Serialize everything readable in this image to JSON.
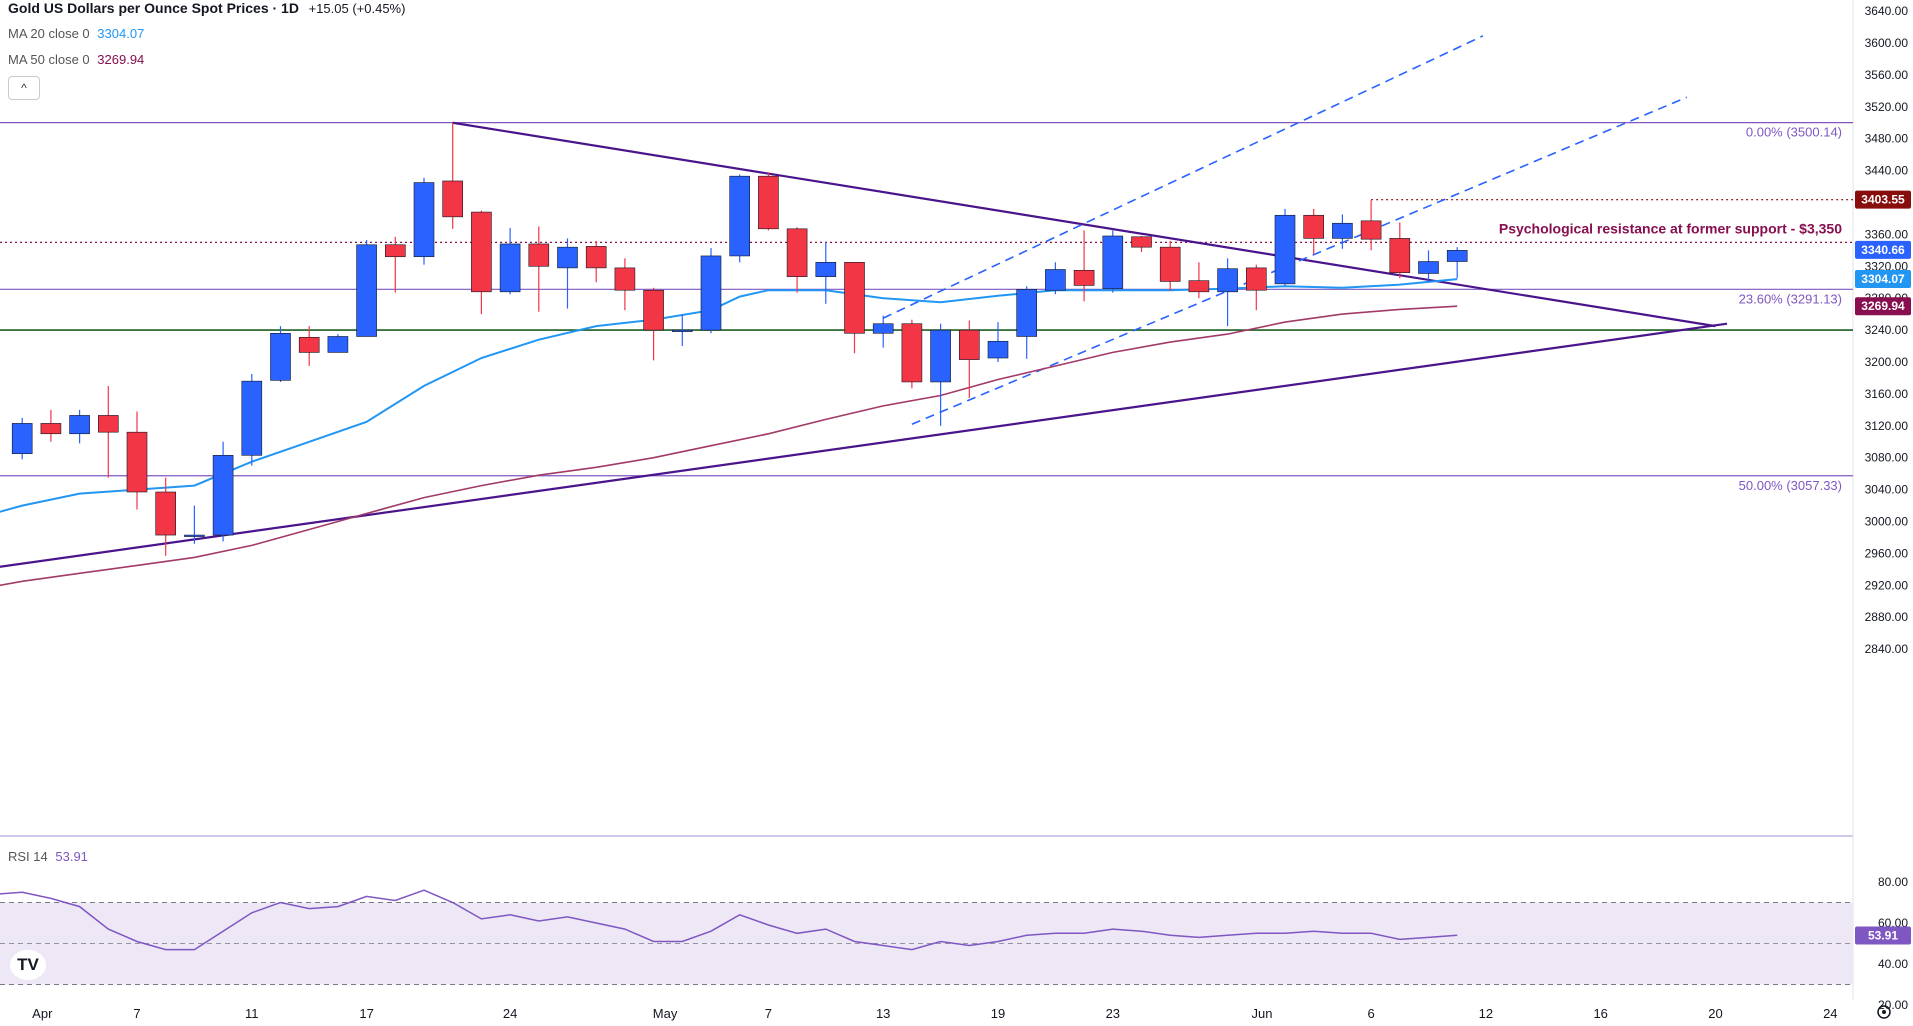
{
  "header": {
    "title": "Gold US Dollars per Ounce Spot Prices · 1D",
    "change": "+15.05 (+0.45%)",
    "ma20_label": "MA 20 close 0",
    "ma20_value": "3304.07",
    "ma50_label": "MA 50 close 0",
    "ma50_value": "3269.94",
    "collapse_glyph": "^"
  },
  "rsi_header": {
    "label": "RSI 14",
    "value": "53.91"
  },
  "annotations": {
    "resistance_label": "Psychological resistance at former support - $3,350",
    "fib_0": "0.00% (3500.14)",
    "fib_236": "23.60% (3291.13)",
    "fib_50": "50.00% (3057.33)"
  },
  "price_tags": [
    {
      "text": "3403.55",
      "value": 3403.55,
      "color": "#880e0e"
    },
    {
      "text": "3340.66",
      "value": 3340.66,
      "color": "#2962ff"
    },
    {
      "text": "3304.07",
      "value": 3304.07,
      "color": "#2196f3"
    },
    {
      "text": "3269.94",
      "value": 3269.94,
      "color": "#880e4f"
    }
  ],
  "rsi_tag": {
    "text": "53.91",
    "value": 53.91,
    "color": "#7e57c2"
  },
  "logo": "TV",
  "colors": {
    "up": "#2962ff",
    "down": "#f23645",
    "ma20": "#2196f3",
    "ma50": "#a23a68",
    "trend": "#4a148c",
    "fib": "#7e57c2",
    "channel": "#2962ff",
    "support": "#1b5e20",
    "rsi_line": "#7e57c2",
    "rsi_band": "#ede7f6"
  },
  "chart_data": {
    "type": "candlestick",
    "title": "Gold US Dollars per Ounce Spot Prices · 1D",
    "y_axis": {
      "range": [
        2800,
        3640
      ],
      "ticks": [
        "2840.00",
        "2880.00",
        "2920.00",
        "2960.00",
        "3000.00",
        "3040.00",
        "3080.00",
        "3120.00",
        "3160.00",
        "3200.00",
        "3240.00",
        "3280.00",
        "3320.00",
        "3360.00",
        "3400.00",
        "3440.00",
        "3480.00",
        "3520.00",
        "3560.00",
        "3600.00",
        "3640.00"
      ]
    },
    "x_axis": {
      "ticks": [
        {
          "label": "Apr",
          "d": -3.3
        },
        {
          "label": "7",
          "d": 0
        },
        {
          "label": "11",
          "d": 4
        },
        {
          "label": "17",
          "d": 8
        },
        {
          "label": "24",
          "d": 13
        },
        {
          "label": "May",
          "d": 18.4
        },
        {
          "label": "7",
          "d": 22
        },
        {
          "label": "13",
          "d": 26
        },
        {
          "label": "19",
          "d": 30
        },
        {
          "label": "23",
          "d": 34
        },
        {
          "label": "Jun",
          "d": 39.2
        },
        {
          "label": "6",
          "d": 43
        },
        {
          "label": "12",
          "d": 47
        },
        {
          "label": "16",
          "d": 51
        },
        {
          "label": "20",
          "d": 55
        },
        {
          "label": "24",
          "d": 59
        }
      ]
    },
    "candles": [
      {
        "d": -4,
        "o": 3085,
        "h": 3130,
        "l": 3078,
        "c": 3123
      },
      {
        "d": -3,
        "o": 3123,
        "h": 3140,
        "l": 3100,
        "c": 3110
      },
      {
        "d": -2,
        "o": 3110,
        "h": 3140,
        "l": 3098,
        "c": 3133
      },
      {
        "d": -1,
        "o": 3133,
        "h": 3170,
        "l": 3055,
        "c": 3112
      },
      {
        "d": 0,
        "o": 3112,
        "h": 3138,
        "l": 3015,
        "c": 3037
      },
      {
        "d": 1,
        "o": 3037,
        "h": 3055,
        "l": 2957,
        "c": 2983
      },
      {
        "d": 2,
        "o": 2982,
        "h": 3020,
        "l": 2972,
        "c": 2983
      },
      {
        "d": 3,
        "o": 2983,
        "h": 3100,
        "l": 2975,
        "c": 3083
      },
      {
        "d": 4,
        "o": 3083,
        "h": 3185,
        "l": 3070,
        "c": 3176
      },
      {
        "d": 5,
        "o": 3177,
        "h": 3245,
        "l": 3175,
        "c": 3236
      },
      {
        "d": 6,
        "o": 3231,
        "h": 3245,
        "l": 3195,
        "c": 3212
      },
      {
        "d": 7,
        "o": 3212,
        "h": 3235,
        "l": 3212,
        "c": 3232
      },
      {
        "d": 8,
        "o": 3232,
        "h": 3353,
        "l": 3232,
        "c": 3347
      },
      {
        "d": 9,
        "o": 3347,
        "h": 3357,
        "l": 3287,
        "c": 3332
      },
      {
        "d": 10,
        "o": 3332,
        "h": 3431,
        "l": 3322,
        "c": 3425
      },
      {
        "d": 11,
        "o": 3427,
        "h": 3500,
        "l": 3367,
        "c": 3382
      },
      {
        "d": 12,
        "o": 3388,
        "h": 3390,
        "l": 3260,
        "c": 3288
      },
      {
        "d": 13,
        "o": 3288,
        "h": 3368,
        "l": 3285,
        "c": 3348
      },
      {
        "d": 14,
        "o": 3348,
        "h": 3370,
        "l": 3263,
        "c": 3320
      },
      {
        "d": 15,
        "o": 3318,
        "h": 3355,
        "l": 3267,
        "c": 3344
      },
      {
        "d": 16,
        "o": 3345,
        "h": 3352,
        "l": 3300,
        "c": 3318
      },
      {
        "d": 17,
        "o": 3318,
        "h": 3330,
        "l": 3265,
        "c": 3290
      },
      {
        "d": 18,
        "o": 3290,
        "h": 3293,
        "l": 3202,
        "c": 3240
      },
      {
        "d": 19,
        "o": 3240,
        "h": 3260,
        "l": 3220,
        "c": 3240
      },
      {
        "d": 20,
        "o": 3240,
        "h": 3343,
        "l": 3236,
        "c": 3333
      },
      {
        "d": 21,
        "o": 3333,
        "h": 3435,
        "l": 3325,
        "c": 3433
      },
      {
        "d": 22,
        "o": 3433,
        "h": 3438,
        "l": 3365,
        "c": 3367
      },
      {
        "d": 23,
        "o": 3367,
        "h": 3369,
        "l": 3287,
        "c": 3307
      },
      {
        "d": 24,
        "o": 3307,
        "h": 3350,
        "l": 3273,
        "c": 3325
      },
      {
        "d": 25,
        "o": 3325,
        "h": 3325,
        "l": 3211,
        "c": 3236
      },
      {
        "d": 26,
        "o": 3236,
        "h": 3258,
        "l": 3218,
        "c": 3248
      },
      {
        "d": 27,
        "o": 3248,
        "h": 3253,
        "l": 3167,
        "c": 3175
      },
      {
        "d": 28,
        "o": 3175,
        "h": 3248,
        "l": 3120,
        "c": 3240
      },
      {
        "d": 29,
        "o": 3240,
        "h": 3252,
        "l": 3155,
        "c": 3203
      },
      {
        "d": 30,
        "o": 3205,
        "h": 3250,
        "l": 3200,
        "c": 3226
      },
      {
        "d": 31,
        "o": 3232,
        "h": 3295,
        "l": 3204,
        "c": 3291
      },
      {
        "d": 32,
        "o": 3290,
        "h": 3325,
        "l": 3285,
        "c": 3316
      },
      {
        "d": 33,
        "o": 3315,
        "h": 3365,
        "l": 3276,
        "c": 3296
      },
      {
        "d": 34,
        "o": 3292,
        "h": 3365,
        "l": 3287,
        "c": 3358
      },
      {
        "d": 35,
        "o": 3357,
        "h": 3358,
        "l": 3338,
        "c": 3344
      },
      {
        "d": 36,
        "o": 3344,
        "h": 3352,
        "l": 3289,
        "c": 3301
      },
      {
        "d": 37,
        "o": 3302,
        "h": 3325,
        "l": 3280,
        "c": 3288
      },
      {
        "d": 38,
        "o": 3288,
        "h": 3330,
        "l": 3245,
        "c": 3317
      },
      {
        "d": 39,
        "o": 3318,
        "h": 3322,
        "l": 3265,
        "c": 3290
      },
      {
        "d": 40,
        "o": 3298,
        "h": 3392,
        "l": 3296,
        "c": 3384
      },
      {
        "d": 41,
        "o": 3384,
        "h": 3392,
        "l": 3335,
        "c": 3355
      },
      {
        "d": 42,
        "o": 3355,
        "h": 3385,
        "l": 3342,
        "c": 3374
      },
      {
        "d": 43,
        "o": 3377,
        "h": 3403,
        "l": 3340,
        "c": 3354
      },
      {
        "d": 44,
        "o": 3355,
        "h": 3375,
        "l": 3305,
        "c": 3312
      },
      {
        "d": 45,
        "o": 3311,
        "h": 3340,
        "l": 3300,
        "c": 3326
      },
      {
        "d": 46,
        "o": 3326,
        "h": 3344,
        "l": 3305,
        "c": 3340
      }
    ],
    "ma20": [
      [
        -6,
        3000
      ],
      [
        -4,
        3020
      ],
      [
        -2,
        3035
      ],
      [
        0,
        3040
      ],
      [
        2,
        3045
      ],
      [
        4,
        3075
      ],
      [
        6,
        3100
      ],
      [
        8,
        3125
      ],
      [
        10,
        3170
      ],
      [
        12,
        3205
      ],
      [
        14,
        3228
      ],
      [
        16,
        3245
      ],
      [
        18,
        3253
      ],
      [
        20,
        3265
      ],
      [
        21,
        3282
      ],
      [
        22,
        3290
      ],
      [
        24,
        3290
      ],
      [
        26,
        3280
      ],
      [
        28,
        3275
      ],
      [
        30,
        3283
      ],
      [
        32,
        3290
      ],
      [
        34,
        3290
      ],
      [
        36,
        3290
      ],
      [
        38,
        3292
      ],
      [
        40,
        3295
      ],
      [
        42,
        3293
      ],
      [
        44,
        3297
      ],
      [
        46,
        3304
      ]
    ],
    "ma50": [
      [
        -6,
        2912
      ],
      [
        -4,
        2925
      ],
      [
        -2,
        2935
      ],
      [
        0,
        2945
      ],
      [
        2,
        2955
      ],
      [
        4,
        2970
      ],
      [
        6,
        2990
      ],
      [
        8,
        3010
      ],
      [
        10,
        3030
      ],
      [
        12,
        3045
      ],
      [
        14,
        3058
      ],
      [
        16,
        3068
      ],
      [
        18,
        3080
      ],
      [
        20,
        3095
      ],
      [
        22,
        3110
      ],
      [
        24,
        3128
      ],
      [
        26,
        3145
      ],
      [
        28,
        3158
      ],
      [
        30,
        3178
      ],
      [
        32,
        3195
      ],
      [
        34,
        3212
      ],
      [
        36,
        3225
      ],
      [
        38,
        3235
      ],
      [
        40,
        3250
      ],
      [
        42,
        3260
      ],
      [
        44,
        3266
      ],
      [
        46,
        3270
      ]
    ],
    "horizontal_levels": [
      {
        "value": 3500.14,
        "label": "0.00% (3500.14)",
        "style": "fib"
      },
      {
        "value": 3291.13,
        "label": "23.60% (3291.13)",
        "style": "fib"
      },
      {
        "value": 3057.33,
        "label": "50.00% (3057.33)",
        "style": "fib"
      },
      {
        "value": 3240,
        "label": "",
        "style": "support"
      },
      {
        "value": 3350,
        "label": "Psychological resistance at former support - $3,350",
        "style": "dotted"
      },
      {
        "value": 3403.55,
        "label": "",
        "style": "dotted-short"
      }
    ],
    "trendlines": [
      {
        "from": [
          11,
          3500
        ],
        "to": [
          55,
          3245
        ],
        "style": "solid"
      },
      {
        "from": [
          -6,
          2937
        ],
        "to": [
          55.4,
          3248
        ],
        "style": "solid"
      },
      {
        "from": [
          27,
          3122
        ],
        "to": [
          54,
          3532
        ],
        "style": "dashed"
      },
      {
        "from": [
          26,
          3255
        ],
        "to": [
          46.9,
          3609
        ],
        "style": "dashed"
      }
    ],
    "rsi": {
      "name": "RSI 14",
      "range": [
        20,
        90
      ],
      "ticks": [
        "20.00",
        "40.00",
        "60.00",
        "80.00"
      ],
      "band": [
        30,
        70
      ],
      "points": [
        [
          -6,
          75
        ],
        [
          -5,
          74
        ],
        [
          -4,
          75
        ],
        [
          -3,
          72
        ],
        [
          -2,
          68
        ],
        [
          -1,
          57
        ],
        [
          0,
          51
        ],
        [
          1,
          47
        ],
        [
          2,
          47
        ],
        [
          3,
          56
        ],
        [
          4,
          65
        ],
        [
          5,
          70
        ],
        [
          6,
          67
        ],
        [
          7,
          68
        ],
        [
          8,
          73
        ],
        [
          9,
          71
        ],
        [
          10,
          76
        ],
        [
          11,
          70
        ],
        [
          12,
          62
        ],
        [
          13,
          64
        ],
        [
          14,
          61
        ],
        [
          15,
          63
        ],
        [
          16,
          60
        ],
        [
          17,
          57
        ],
        [
          18,
          51
        ],
        [
          19,
          51
        ],
        [
          20,
          56
        ],
        [
          21,
          64
        ],
        [
          22,
          59
        ],
        [
          23,
          55
        ],
        [
          24,
          57
        ],
        [
          25,
          51
        ],
        [
          26,
          49
        ],
        [
          27,
          47
        ],
        [
          28,
          51
        ],
        [
          29,
          49
        ],
        [
          30,
          51
        ],
        [
          31,
          54
        ],
        [
          32,
          55
        ],
        [
          33,
          55
        ],
        [
          34,
          57
        ],
        [
          35,
          56
        ],
        [
          36,
          54
        ],
        [
          37,
          53
        ],
        [
          38,
          54
        ],
        [
          39,
          55
        ],
        [
          40,
          55
        ],
        [
          41,
          56
        ],
        [
          42,
          55
        ],
        [
          43,
          55
        ],
        [
          44,
          52
        ],
        [
          45,
          53
        ],
        [
          46,
          54
        ]
      ]
    }
  }
}
